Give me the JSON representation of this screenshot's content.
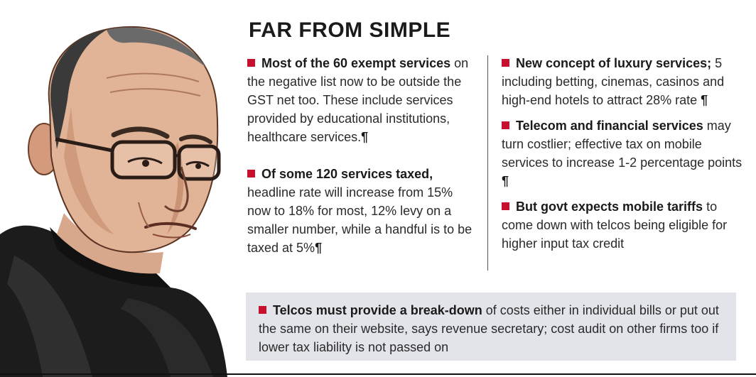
{
  "title": "FAR FROM SIMPLE",
  "left_items": [
    {
      "lead": "Most of the 60 exempt services",
      "body": " on the negative list now to be outside the GST net too. These include services provided by educational institutions, healthcare services.",
      "mark": "¶"
    },
    {
      "lead": "Of some 120 services taxed,",
      "body": " headline rate will increase from 15% now to 18% for most, 12% levy on a smaller number, while a handful is to be taxed at 5%",
      "mark": "¶"
    }
  ],
  "right_items": [
    {
      "lead": "New concept of luxury services;",
      "body": " 5 including betting, cinemas, casinos and high-end hotels to attract 28% rate ",
      "mark": "¶"
    },
    {
      "lead": "Telecom and financial services",
      "body": " may turn costlier; effective tax on mobile services to increase 1-2 percentage points ",
      "mark": "¶"
    },
    {
      "lead": "But govt expects mobile tariffs",
      "body": " to come down with telcos being eligible for higher input tax credit",
      "mark": ""
    }
  ],
  "box": {
    "lead": "Telcos must provide a break-down",
    "body": " of costs either in individual bills or put out the same on their website, says revenue secretary; cost audit on other firms too if lower tax liability is not passed on"
  },
  "colors": {
    "bullet": "#c8102e",
    "box_bg": "#e3e4ea"
  },
  "illustration": "portrait-sketch"
}
